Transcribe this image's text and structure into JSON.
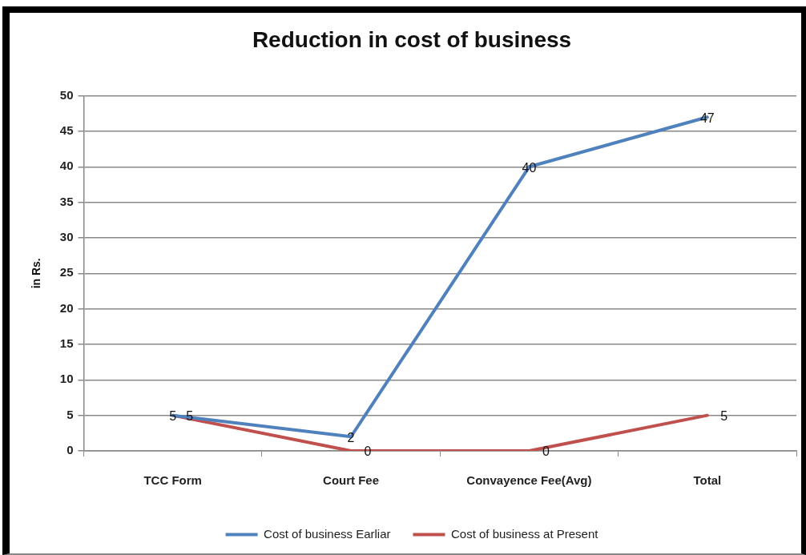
{
  "chart_data": {
    "type": "line",
    "title": "Reduction in cost of business",
    "ylabel": "in Rs.",
    "categories": [
      "TCC Form",
      "Court Fee",
      "Convayence Fee(Avg)",
      "Total"
    ],
    "series": [
      {
        "name": "Cost of business Earliar",
        "color": "#4f81bd",
        "values": [
          5,
          2,
          40,
          47
        ]
      },
      {
        "name": "Cost of business at Present",
        "color": "#c0504d",
        "values": [
          5,
          0,
          0,
          5
        ]
      }
    ],
    "ylim": [
      0,
      50
    ],
    "yticks": [
      0,
      5,
      10,
      15,
      20,
      25,
      30,
      35,
      40,
      45,
      50
    ],
    "grid": "y",
    "legend": "bottom",
    "marker": "none",
    "data_labels": true
  }
}
